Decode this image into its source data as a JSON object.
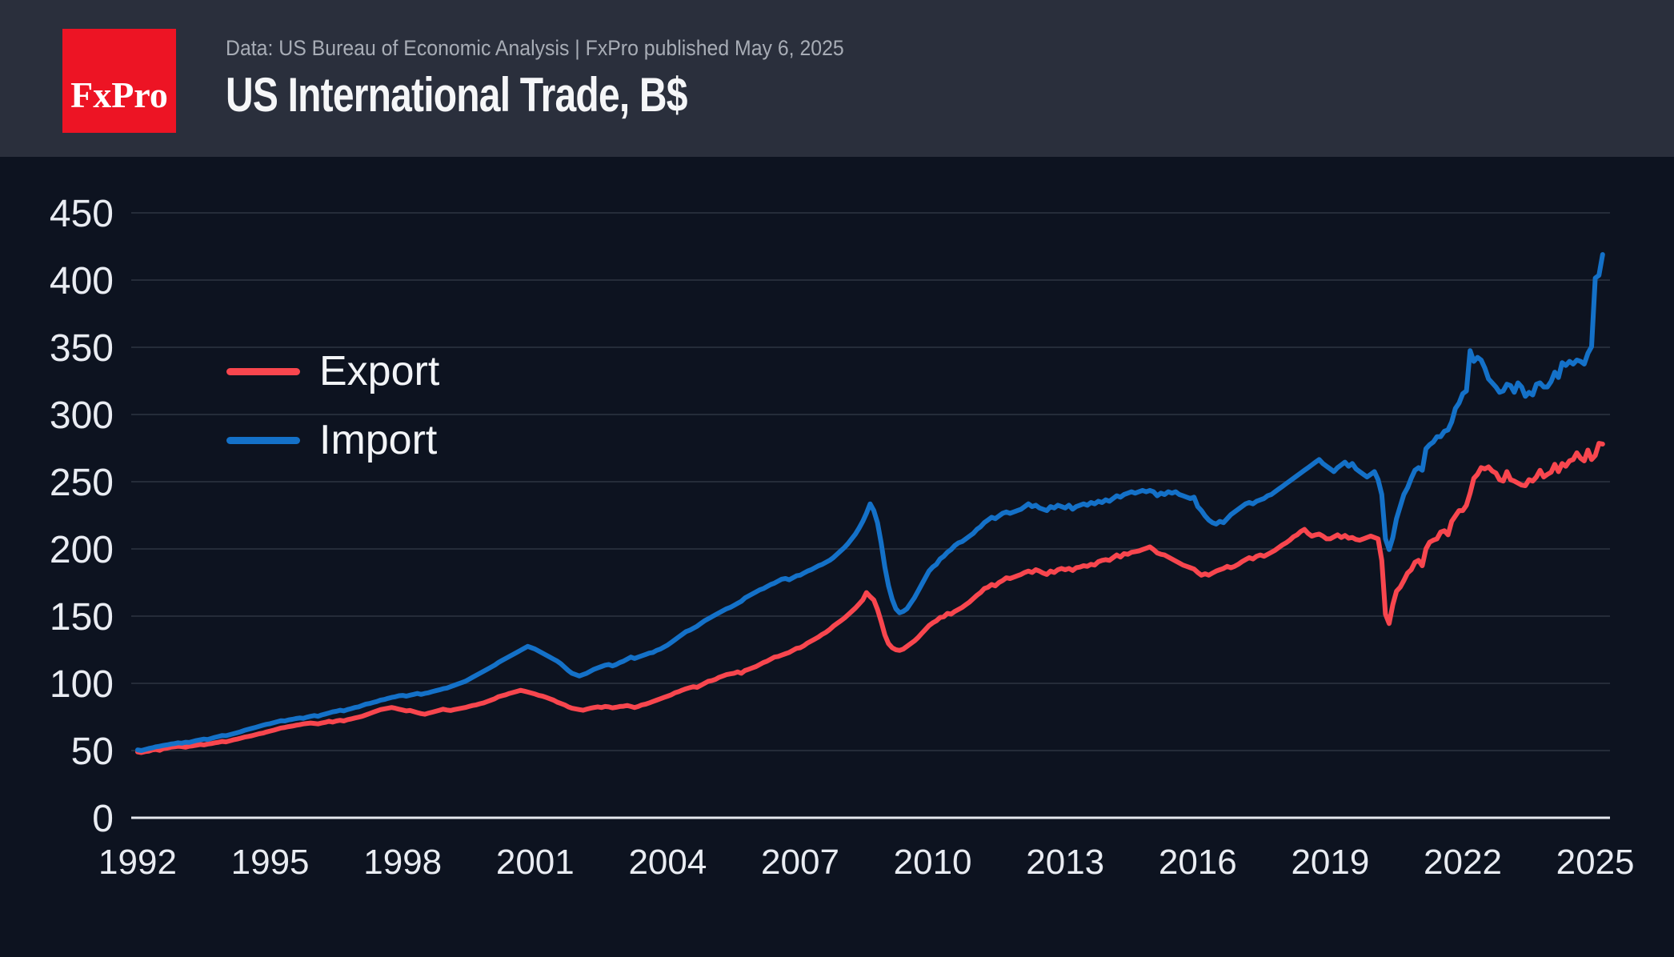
{
  "header": {
    "logo_text": "FxPro",
    "subtitle": "Data: US Bureau of Economic Analysis | FxPro published May 6, 2025",
    "title": "US International Trade, B$"
  },
  "colors": {
    "page_bg": "#0d1320",
    "header_bg": "#2a2f3c",
    "logo_bg": "#ed1424",
    "grid": "#252c39",
    "baseline": "#e5e8ee",
    "tick_text": "#e9ecf2",
    "export_line": "#f8464e",
    "import_line": "#1471c8"
  },
  "chart_data": {
    "type": "line",
    "title": "US International Trade, B$",
    "ylabel": "",
    "xlabel": "",
    "ylim": [
      0,
      450
    ],
    "y_tick_values": [
      0,
      50,
      100,
      150,
      200,
      250,
      300,
      350,
      400,
      450
    ],
    "x_tick_years": [
      1992,
      1995,
      1998,
      2001,
      2004,
      2007,
      2010,
      2013,
      2016,
      2019,
      2022,
      2025
    ],
    "grid": "horizontal",
    "legend_position": "upper-left-inside",
    "frequency": "monthly",
    "start_year": 1992,
    "points_per_year": 12,
    "series": [
      {
        "name": "Export",
        "color": "#f8464e",
        "values": [
          49,
          48.5,
          49.2,
          49.5,
          50.5,
          50.8,
          50.2,
          51.5,
          51.8,
          52.5,
          52.8,
          53.2,
          53,
          52.5,
          53.2,
          53.5,
          54,
          54.5,
          54.2,
          54.8,
          55.2,
          55.8,
          56.2,
          56.8,
          56.5,
          57.2,
          58,
          58.5,
          59.2,
          60,
          60.5,
          61,
          61.8,
          62.5,
          63,
          63.8,
          64.5,
          65.2,
          66,
          66.8,
          67.2,
          67.8,
          68.2,
          68.8,
          69.2,
          69.8,
          70.2,
          70.5,
          70.2,
          69.8,
          70.5,
          71,
          71.8,
          71.2,
          72,
          72.5,
          72,
          73,
          73.5,
          74.2,
          74.8,
          75.5,
          76.5,
          77.5,
          78.5,
          79.5,
          80.5,
          81,
          81.5,
          82,
          81.5,
          80.8,
          80.2,
          79.5,
          79.8,
          79,
          78.2,
          77.5,
          77,
          77.8,
          78.5,
          79.2,
          80,
          80.8,
          80.2,
          79.8,
          80.5,
          81,
          81.5,
          82,
          82.8,
          83.5,
          84,
          84.8,
          85.5,
          86.5,
          87.5,
          88.5,
          90,
          90.8,
          91.5,
          92.5,
          93.2,
          94,
          94.8,
          94.2,
          93.5,
          92.8,
          92,
          91,
          90.5,
          89.5,
          88.5,
          87.5,
          86,
          85,
          84,
          82.5,
          81.5,
          81,
          80.5,
          80,
          80.8,
          81.5,
          82,
          82.5,
          82,
          82.8,
          82.5,
          81.8,
          82.2,
          82.8,
          83,
          83.5,
          82.8,
          82,
          82.8,
          84,
          84.5,
          85.5,
          86.5,
          87.5,
          88.5,
          89.5,
          90.5,
          91.5,
          93,
          93.8,
          95,
          96,
          96.8,
          97.5,
          97,
          98.5,
          100,
          101.5,
          102,
          103,
          104.5,
          105.5,
          106.5,
          107,
          107.5,
          108.5,
          107.5,
          109.5,
          110.5,
          111.5,
          112.5,
          114,
          115.5,
          116.5,
          118,
          119.5,
          120,
          121,
          122,
          123,
          124.5,
          126,
          126.5,
          128,
          130,
          131.5,
          133,
          134.5,
          136.5,
          138,
          140,
          142.5,
          144.5,
          146.5,
          148.5,
          151,
          153.5,
          156,
          159,
          162,
          167.5,
          164.5,
          162,
          155,
          146,
          136,
          129.5,
          126.5,
          125,
          124.5,
          125.5,
          127.5,
          129.5,
          131.5,
          134,
          137,
          140,
          143,
          145,
          146.5,
          149,
          149.5,
          152,
          151.5,
          153.5,
          155,
          156.5,
          158.5,
          160.5,
          163,
          165.5,
          167.5,
          170.5,
          171.5,
          173.5,
          172.5,
          175,
          176.5,
          178.5,
          178,
          179,
          180,
          181,
          182.5,
          183.5,
          182.5,
          184.5,
          183.5,
          182,
          181,
          183.5,
          182.5,
          184.5,
          185.5,
          184.5,
          185.5,
          184,
          186,
          186.5,
          187.5,
          187,
          188.5,
          188,
          190.5,
          191.5,
          192,
          191.5,
          193.5,
          195.5,
          194,
          196.5,
          196,
          197.5,
          198,
          198.5,
          199.5,
          200.5,
          201.5,
          199.5,
          197,
          196,
          195.5,
          194,
          192.5,
          191,
          189.5,
          188,
          187,
          186,
          185,
          182.5,
          180.5,
          181.5,
          180.5,
          182,
          183.5,
          184.5,
          185.5,
          187,
          186,
          187,
          188.5,
          190.5,
          192,
          193.5,
          192.5,
          194.5,
          195.5,
          194.5,
          196,
          197.5,
          199,
          201,
          203,
          204.5,
          206.5,
          209,
          210.5,
          213,
          214.5,
          211.5,
          209.5,
          210.5,
          211,
          209.5,
          207.5,
          207.5,
          209,
          210.5,
          208.5,
          210,
          208,
          208.5,
          207,
          206.5,
          207.5,
          208.5,
          209.5,
          208.5,
          207.5,
          191.5,
          151.5,
          144.5,
          158.5,
          168.5,
          171.5,
          176.5,
          182,
          184.5,
          190,
          191.5,
          187.5,
          200,
          205,
          206.5,
          207.5,
          212.5,
          213.5,
          210.5,
          220.5,
          224.5,
          228.5,
          228.5,
          232.5,
          241.5,
          252.5,
          255.5,
          260.5,
          259.5,
          261,
          258,
          256.5,
          251.5,
          250.5,
          257.5,
          251.5,
          250.5,
          249,
          247.5,
          247,
          251.5,
          250.5,
          253.5,
          258.5,
          253.5,
          255.5,
          257,
          263,
          257.5,
          263.5,
          261.5,
          265.5,
          266.5,
          271.5,
          267.5,
          265.5,
          273.5,
          266.5,
          269.5,
          278.5,
          278
        ]
      },
      {
        "name": "Import",
        "color": "#1471c8",
        "values": [
          50.5,
          50,
          50.8,
          51.5,
          52,
          52.8,
          53.2,
          53.8,
          54.2,
          54.8,
          55.2,
          55.8,
          55.5,
          56.2,
          56,
          56.8,
          57.5,
          58,
          58.5,
          58.2,
          59,
          59.8,
          60.5,
          61.2,
          61,
          61.8,
          62.5,
          63.2,
          64,
          65,
          65.8,
          66.5,
          67.2,
          68,
          68.8,
          69.5,
          70,
          70.8,
          71.5,
          72.2,
          72,
          72.8,
          73.2,
          73.8,
          74.2,
          74,
          74.8,
          75.5,
          76,
          75.5,
          76.5,
          77.2,
          78,
          78.8,
          79.2,
          80,
          79.5,
          80.5,
          81.2,
          82,
          82.5,
          83.5,
          84.5,
          85,
          85.8,
          86.5,
          87.5,
          88,
          88.8,
          89.5,
          90,
          90.8,
          91,
          90.5,
          91.2,
          91.8,
          92.5,
          91.8,
          92.5,
          93,
          93.8,
          94.5,
          95.2,
          96,
          96.5,
          97.5,
          98.5,
          99.5,
          100.5,
          101.5,
          103,
          104.5,
          106,
          107.5,
          109,
          110.5,
          112,
          113.5,
          115.5,
          117,
          118.5,
          120,
          121.5,
          123,
          124.5,
          126,
          127.5,
          126.5,
          125.5,
          124,
          122.5,
          121,
          119.5,
          118,
          116.5,
          114.5,
          112,
          109.5,
          107.5,
          106.5,
          105.5,
          106.5,
          107.5,
          109,
          110.5,
          111.5,
          112.5,
          113.5,
          114,
          113,
          114,
          115.5,
          116.5,
          118,
          119.5,
          118.5,
          119.5,
          120.5,
          121.5,
          122.5,
          123,
          124.5,
          125.5,
          127,
          128.5,
          130.5,
          132.5,
          134.5,
          136.5,
          138.5,
          139.5,
          141,
          142.5,
          144.5,
          146.5,
          148,
          149.5,
          151,
          152.5,
          154,
          155.5,
          156.5,
          158,
          159.5,
          161,
          163.5,
          165,
          166.5,
          168,
          169.5,
          170.5,
          172,
          173.5,
          174.5,
          176,
          177.5,
          178,
          177,
          178.5,
          180,
          180.5,
          182,
          183.5,
          184.5,
          186,
          187.5,
          188.5,
          190,
          191.5,
          193.5,
          196,
          198.5,
          201,
          204,
          207.5,
          211,
          215.5,
          220.5,
          226.5,
          233.5,
          228.5,
          219.5,
          204.5,
          186.5,
          172.5,
          162.5,
          155.5,
          152.5,
          153.5,
          155.5,
          159.5,
          163.5,
          168.5,
          173.5,
          178.5,
          183.5,
          186.5,
          188.5,
          192.5,
          194.5,
          197.5,
          199.5,
          202.5,
          204.5,
          205.5,
          207.5,
          209.5,
          211.5,
          214.5,
          216.5,
          219.5,
          221.5,
          223.5,
          222.5,
          224.5,
          226.5,
          227.5,
          226.5,
          227.5,
          228.5,
          229.5,
          231.5,
          233.5,
          231.5,
          232.5,
          230.5,
          229.5,
          228.5,
          231.5,
          230.5,
          232.5,
          231.5,
          230.5,
          232.5,
          229.5,
          231.5,
          232.5,
          233.5,
          232.5,
          234.5,
          233.5,
          235.5,
          234.5,
          236.5,
          235.5,
          237.5,
          239.5,
          238.5,
          240.5,
          241.5,
          242.5,
          241.5,
          242.5,
          243.5,
          242.5,
          243.5,
          242.5,
          239.5,
          241.5,
          240.5,
          242.5,
          241.5,
          242.5,
          240.5,
          239.5,
          238.5,
          237.5,
          238.5,
          231.5,
          228.5,
          224.5,
          221.5,
          219.5,
          218.5,
          220.5,
          219.5,
          222.5,
          225.5,
          227.5,
          229.5,
          231.5,
          233.5,
          234.5,
          233.5,
          235.5,
          236.5,
          237.5,
          239.5,
          240.5,
          242.5,
          244.5,
          246.5,
          248.5,
          250.5,
          252.5,
          254.5,
          256.5,
          258.5,
          260.5,
          262.5,
          264.5,
          266.5,
          263.5,
          261.5,
          259.5,
          257.5,
          260.5,
          262.5,
          264.5,
          261.5,
          263.5,
          259.5,
          257.5,
          255.5,
          253.5,
          255.5,
          257.5,
          251.5,
          240.5,
          207.5,
          199.5,
          208.5,
          222.5,
          231.5,
          240.5,
          245.5,
          252.5,
          258.5,
          260.5,
          258.5,
          274.5,
          277.5,
          279.5,
          283.5,
          283.5,
          287.5,
          288.5,
          294.5,
          304.5,
          308.5,
          315.5,
          317.5,
          347.5,
          339.5,
          342.5,
          340.5,
          334.5,
          326.5,
          323.5,
          320.5,
          316.5,
          317.5,
          322.5,
          321.5,
          316.5,
          323.5,
          320.5,
          313.5,
          316.5,
          314.5,
          322.5,
          323.5,
          320.5,
          320.5,
          324.5,
          331.5,
          327.5,
          338.5,
          336.5,
          339.5,
          337.5,
          340.5,
          339.5,
          337.5,
          345.5,
          350.5,
          401.5,
          403.5,
          419
        ]
      }
    ]
  }
}
